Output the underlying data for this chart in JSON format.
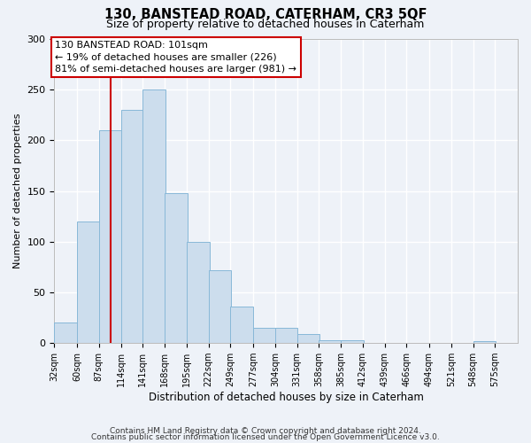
{
  "title": "130, BANSTEAD ROAD, CATERHAM, CR3 5QF",
  "subtitle": "Size of property relative to detached houses in Caterham",
  "xlabel": "Distribution of detached houses by size in Caterham",
  "ylabel": "Number of detached properties",
  "bin_edges": [
    32,
    60,
    87,
    114,
    141,
    168,
    195,
    222,
    249,
    277,
    304,
    331,
    358,
    385,
    412,
    439,
    466,
    494,
    521,
    548,
    575
  ],
  "bin_heights": [
    20,
    120,
    210,
    230,
    250,
    148,
    100,
    72,
    36,
    15,
    15,
    9,
    3,
    3,
    0,
    0,
    0,
    0,
    0,
    2
  ],
  "bar_facecolor": "#ccdded",
  "bar_edgecolor": "#88b8d8",
  "vline_x": 101,
  "vline_color": "#cc0000",
  "ylim": [
    0,
    300
  ],
  "yticks": [
    0,
    50,
    100,
    150,
    200,
    250,
    300
  ],
  "annotation_box_text": "130 BANSTEAD ROAD: 101sqm\n← 19% of detached houses are smaller (226)\n81% of semi-detached houses are larger (981) →",
  "annotation_box_edgecolor": "#cc0000",
  "annotation_box_facecolor": "#ffffff",
  "footer_line1": "Contains HM Land Registry data © Crown copyright and database right 2024.",
  "footer_line2": "Contains public sector information licensed under the Open Government Licence v3.0.",
  "background_color": "#eef2f8",
  "grid_color": "#ffffff",
  "tick_labels": [
    "32sqm",
    "60sqm",
    "87sqm",
    "114sqm",
    "141sqm",
    "168sqm",
    "195sqm",
    "222sqm",
    "249sqm",
    "277sqm",
    "304sqm",
    "331sqm",
    "358sqm",
    "385sqm",
    "412sqm",
    "439sqm",
    "466sqm",
    "494sqm",
    "521sqm",
    "548sqm",
    "575sqm"
  ]
}
